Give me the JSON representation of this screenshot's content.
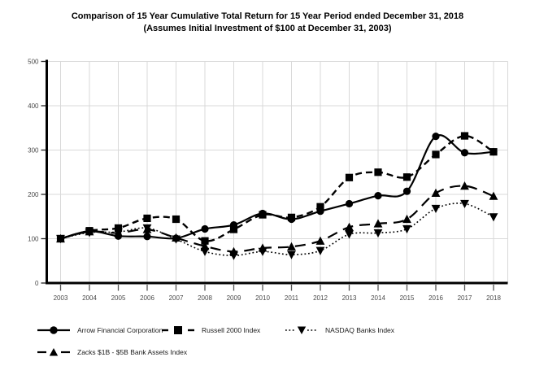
{
  "chart_data": {
    "type": "line",
    "title": "Comparison of 15 Year Cumulative Total Return for 15 Year Period ended December 31, 2018",
    "subtitle": "(Assumes Initial Investment of $100 at December 31, 2003)",
    "x": [
      "2003",
      "2004",
      "2005",
      "2006",
      "2007",
      "2008",
      "2009",
      "2010",
      "2011",
      "2012",
      "2013",
      "2014",
      "2015",
      "2016",
      "2017",
      "2018"
    ],
    "ylim": [
      0,
      500
    ],
    "yticks": [
      0,
      100,
      200,
      300,
      400,
      500
    ],
    "grid": true,
    "legend_position": "bottom",
    "axis_color": "#000000",
    "grid_color": "#d9d9d9",
    "series_color": "#000000",
    "series": [
      {
        "name": "Arrow Financial Corporation",
        "marker": "circle",
        "line": "solid",
        "values": [
          100,
          117,
          106,
          105,
          101,
          122,
          131,
          157,
          144,
          162,
          179,
          197,
          207,
          331,
          294,
          296
        ]
      },
      {
        "name": "Russell 2000 Index",
        "marker": "square",
        "line": "dashed",
        "values": [
          100,
          118,
          124,
          146,
          144,
          95,
          121,
          154,
          148,
          172,
          238,
          250,
          239,
          290,
          332,
          296
        ]
      },
      {
        "name": "NASDAQ Banks Index",
        "marker": "triangle-down",
        "line": "dotted",
        "values": [
          100,
          114,
          115,
          124,
          99,
          71,
          62,
          71,
          64,
          73,
          110,
          113,
          122,
          168,
          179,
          149
        ]
      },
      {
        "name": "Zacks $1B - $5B Bank Assets Index",
        "marker": "triangle-up",
        "line": "longdash",
        "values": [
          100,
          116,
          113,
          121,
          102,
          83,
          71,
          79,
          82,
          95,
          126,
          134,
          144,
          203,
          219,
          196
        ]
      }
    ]
  }
}
